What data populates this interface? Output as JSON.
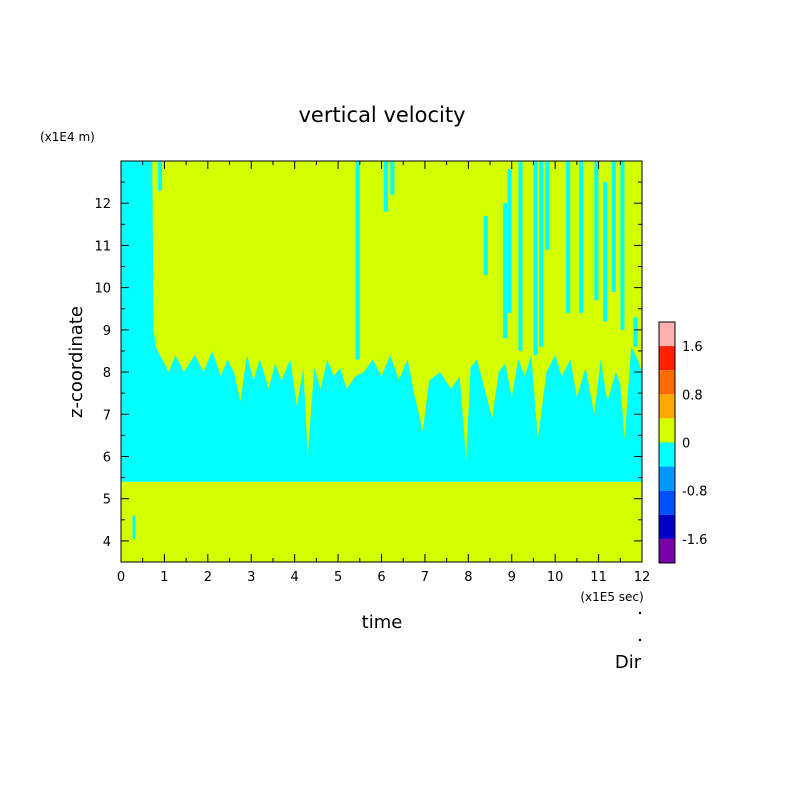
{
  "chart_data": {
    "type": "heatmap",
    "title": "vertical velocity",
    "xlabel": "time",
    "ylabel": "z-coordinate",
    "x_unit": "(x1E5 sec)",
    "y_unit": "(x1E4 m)",
    "xlim": [
      0,
      12
    ],
    "ylim": [
      3.5,
      13
    ],
    "x_ticks": [
      "0",
      "1",
      "2",
      "3",
      "4",
      "5",
      "6",
      "7",
      "8",
      "9",
      "10",
      "11",
      "12"
    ],
    "y_ticks": [
      "4",
      "5",
      "6",
      "7",
      "8",
      "9",
      "10",
      "11",
      "12"
    ],
    "corner_note": "Dir",
    "colorbar": {
      "levels": [
        "1.6",
        "0.8",
        "0",
        "-0.8",
        "-1.6"
      ],
      "colors": [
        "#ffb0b0",
        "#ff2000",
        "#ff6a00",
        "#ffa800",
        "#d4ff00",
        "#00ffff",
        "#0096ff",
        "#0050ff",
        "#0000c8",
        "#7a00a8"
      ]
    },
    "field": {
      "background_color": "#d4ff00",
      "negative_color": "#00ffff",
      "lower_boundary_z": 5.4,
      "upper_boundary_z": [
        [
          0,
          13
        ],
        [
          0.72,
          13
        ],
        [
          0.75,
          9.0
        ],
        [
          0.8,
          8.6
        ],
        [
          0.95,
          8.3
        ],
        [
          1.1,
          8.0
        ],
        [
          1.25,
          8.4
        ],
        [
          1.45,
          8.0
        ],
        [
          1.7,
          8.4
        ],
        [
          1.9,
          8.0
        ],
        [
          2.1,
          8.5
        ],
        [
          2.3,
          7.9
        ],
        [
          2.45,
          8.3
        ],
        [
          2.6,
          8.0
        ],
        [
          2.75,
          7.3
        ],
        [
          2.9,
          8.4
        ],
        [
          3.05,
          7.8
        ],
        [
          3.2,
          8.3
        ],
        [
          3.4,
          7.6
        ],
        [
          3.55,
          8.2
        ],
        [
          3.7,
          7.8
        ],
        [
          3.9,
          8.3
        ],
        [
          4.05,
          7.2
        ],
        [
          4.2,
          8.1
        ],
        [
          4.3,
          6.0
        ],
        [
          4.45,
          8.1
        ],
        [
          4.6,
          7.6
        ],
        [
          4.75,
          8.3
        ],
        [
          4.9,
          7.9
        ],
        [
          5.05,
          8.1
        ],
        [
          5.2,
          7.6
        ],
        [
          5.4,
          7.9
        ],
        [
          5.6,
          8.0
        ],
        [
          5.8,
          8.3
        ],
        [
          6.0,
          7.9
        ],
        [
          6.2,
          8.4
        ],
        [
          6.4,
          7.8
        ],
        [
          6.6,
          8.3
        ],
        [
          6.75,
          7.5
        ],
        [
          6.95,
          6.6
        ],
        [
          7.1,
          7.8
        ],
        [
          7.35,
          8.0
        ],
        [
          7.6,
          7.6
        ],
        [
          7.8,
          7.9
        ],
        [
          7.95,
          5.9
        ],
        [
          8.05,
          8.1
        ],
        [
          8.2,
          8.3
        ],
        [
          8.35,
          7.7
        ],
        [
          8.55,
          6.9
        ],
        [
          8.7,
          8.0
        ],
        [
          8.85,
          8.2
        ],
        [
          9.0,
          7.4
        ],
        [
          9.15,
          8.3
        ],
        [
          9.3,
          7.9
        ],
        [
          9.45,
          8.4
        ],
        [
          9.6,
          6.4
        ],
        [
          9.8,
          8.0
        ],
        [
          10.0,
          8.4
        ],
        [
          10.15,
          7.9
        ],
        [
          10.35,
          8.3
        ],
        [
          10.5,
          7.4
        ],
        [
          10.7,
          8.1
        ],
        [
          10.9,
          7.0
        ],
        [
          11.05,
          8.3
        ],
        [
          11.2,
          7.3
        ],
        [
          11.4,
          8.0
        ],
        [
          11.5,
          7.7
        ],
        [
          11.6,
          6.4
        ],
        [
          11.75,
          8.6
        ],
        [
          11.9,
          8.3
        ],
        [
          12,
          8.0
        ]
      ],
      "streaks": [
        [
          0.9,
          13,
          12.3
        ],
        [
          5.45,
          13,
          8.3
        ],
        [
          6.1,
          13,
          11.8
        ],
        [
          6.25,
          13,
          12.2
        ],
        [
          8.4,
          11.7,
          10.3
        ],
        [
          8.85,
          12.0,
          8.8
        ],
        [
          8.95,
          12.8,
          9.4
        ],
        [
          9.2,
          13,
          8.5
        ],
        [
          9.55,
          13,
          8.4
        ],
        [
          9.68,
          13,
          8.6
        ],
        [
          9.82,
          13,
          10.9
        ],
        [
          10.3,
          13,
          9.4
        ],
        [
          10.6,
          13,
          9.4
        ],
        [
          10.95,
          13,
          9.7
        ],
        [
          11.15,
          12.5,
          9.2
        ],
        [
          11.35,
          13,
          9.9
        ],
        [
          11.55,
          13,
          9.0
        ],
        [
          11.85,
          9.3,
          8.6
        ]
      ],
      "small_patches": [
        [
          0.3,
          4.6,
          4.05
        ]
      ]
    }
  }
}
